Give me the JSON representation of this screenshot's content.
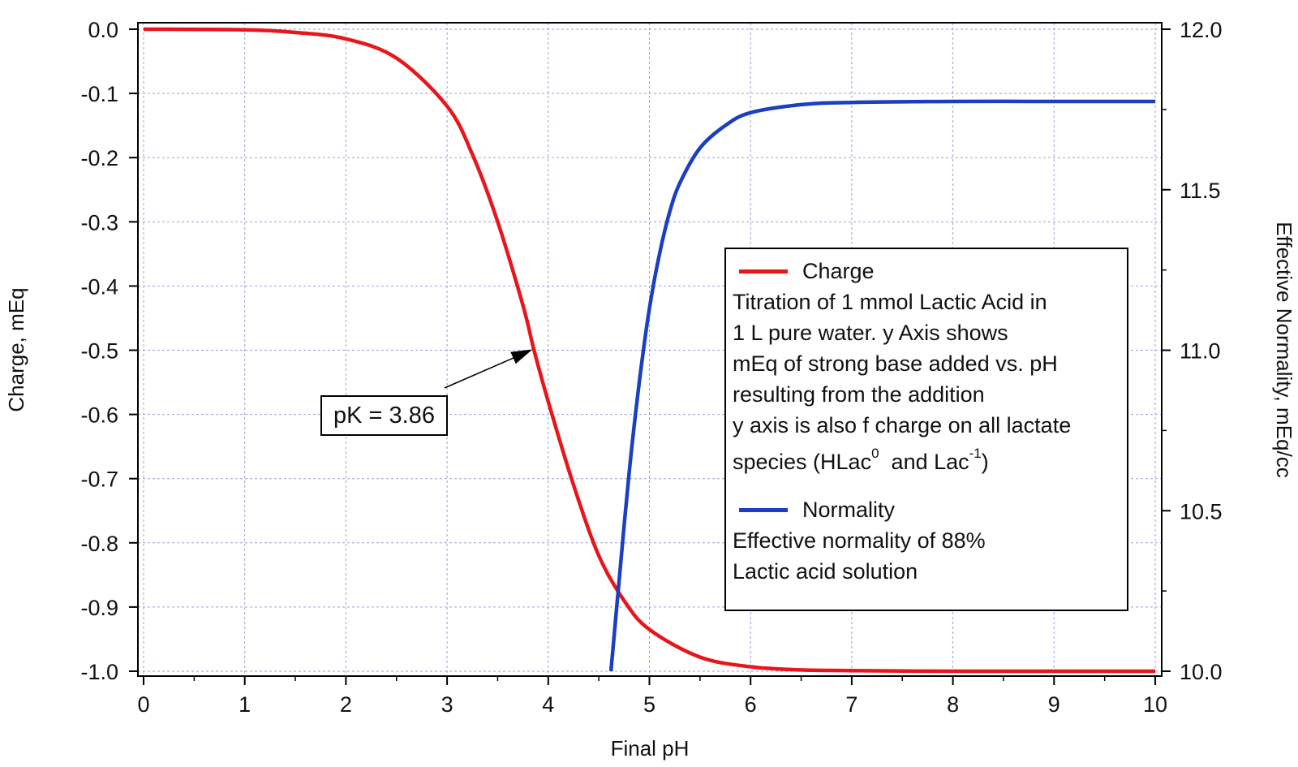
{
  "chart_data": {
    "type": "line",
    "xlabel": "Final pH",
    "ylabel_left": "Charge, mEq",
    "ylabel_right": "Effective Normality, mEq/cc",
    "xlim": [
      0,
      10
    ],
    "ylim_left": [
      -1.0,
      0.0
    ],
    "ylim_right": [
      10.0,
      12.0
    ],
    "x_ticks": [
      "0",
      "1",
      "2",
      "3",
      "4",
      "5",
      "6",
      "7",
      "8",
      "9",
      "10"
    ],
    "y_left_ticks": [
      "0.0",
      "-0.1",
      "-0.2",
      "-0.3",
      "-0.4",
      "-0.5",
      "-0.6",
      "-0.7",
      "-0.8",
      "-0.9",
      "-1.0"
    ],
    "y_right_ticks": [
      "12.0",
      "11.5",
      "11.0",
      "10.5",
      "10.0"
    ],
    "grid": true,
    "legend_position": "center-right",
    "series": [
      {
        "name": "Charge",
        "axis": "left",
        "color": "#e8161b",
        "x": [
          0,
          1,
          1.5,
          2,
          2.5,
          3,
          3.25,
          3.5,
          3.75,
          3.86,
          4,
          4.25,
          4.5,
          4.75,
          5,
          5.5,
          6,
          6.5,
          7,
          8,
          9,
          10
        ],
        "y": [
          0.0,
          -0.001,
          -0.005,
          -0.015,
          -0.045,
          -0.12,
          -0.195,
          -0.3,
          -0.43,
          -0.5,
          -0.58,
          -0.71,
          -0.82,
          -0.89,
          -0.935,
          -0.978,
          -0.993,
          -0.998,
          -0.999,
          -1.0,
          -1.0,
          -1.0
        ]
      },
      {
        "name": "Normality",
        "axis": "right",
        "color": "#1a3fc0",
        "x": [
          4.62,
          4.7,
          4.8,
          4.9,
          5.0,
          5.1,
          5.2,
          5.3,
          5.5,
          5.75,
          6.0,
          6.5,
          7.0,
          8.0,
          9.0,
          10.0
        ],
        "y": [
          10.0,
          10.28,
          10.62,
          10.9,
          11.13,
          11.3,
          11.43,
          11.52,
          11.63,
          11.7,
          11.74,
          11.765,
          11.772,
          11.775,
          11.775,
          11.775
        ]
      }
    ],
    "annotations": [
      {
        "text": "pK = 3.86",
        "arrow_to": [
          3.86,
          -0.5
        ]
      }
    ]
  },
  "legend": {
    "charge_label": "Charge",
    "charge_desc_1": "Titration of 1 mmol Lactic Acid in",
    "charge_desc_2": "1 L pure water. y Axis shows",
    "charge_desc_3": "mEq of strong base added vs. pH",
    "charge_desc_4": "resulting from the addition",
    "charge_desc_5": "y axis is also f charge on all lactate",
    "charge_desc_6a": "species (HLac",
    "charge_desc_6sup1": "0",
    "charge_desc_6b": "  and Lac",
    "charge_desc_6sup2": "-1",
    "charge_desc_6c": ")",
    "normality_label": "Normality",
    "normality_desc_1": "Effective normality of 88%",
    "normality_desc_2": "Lactic acid solution"
  }
}
